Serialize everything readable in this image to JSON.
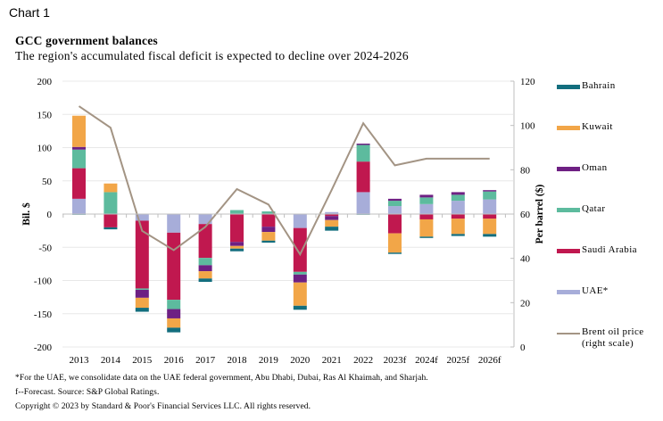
{
  "header": {
    "chart_number": "Chart 1"
  },
  "footnotes": [
    "*For the UAE, we consolidate data on the UAE federal government, Abu Dhabi, Dubai, Ras Al Khaimah, and Sharjah.",
    "f--Forecast. Source: S&P Global Ratings.",
    "Copyright © 2023 by Standard & Poor's Financial Services LLC. All rights reserved."
  ],
  "chart_data": {
    "type": "bar",
    "stacked": true,
    "title": "GCC government balances",
    "subtitle": "The region's accumulated fiscal deficit is expected to decline over 2024-2026",
    "xlabel": "",
    "ylabel": "Bil. $",
    "y2label": "Per barrel ($)",
    "ylim": [
      -200,
      200
    ],
    "y2lim": [
      0,
      120
    ],
    "yticks": [
      200,
      150,
      100,
      50,
      0,
      -50,
      -100,
      -150,
      -200
    ],
    "y2ticks": [
      120,
      100,
      80,
      60,
      40,
      20,
      0
    ],
    "grid": true,
    "legend_position": "right",
    "categories": [
      "2013",
      "2014",
      "2015",
      "2016",
      "2017",
      "2018",
      "2019",
      "2020",
      "2021",
      "2022",
      "2023f",
      "2024f",
      "2025f",
      "2026f"
    ],
    "series": [
      {
        "name": "Bahrain",
        "color": "#136E7E",
        "values": [
          -1,
          -3,
          -6,
          -7,
          -5,
          -4,
          -3,
          -6,
          -6,
          -1,
          -2,
          -2,
          -3,
          -4
        ]
      },
      {
        "name": "Kuwait",
        "color": "#F2A648",
        "values": [
          47,
          13,
          -15,
          -14,
          -11,
          -4,
          -13,
          -35,
          -10,
          0,
          -29,
          -26,
          -23,
          -23
        ]
      },
      {
        "name": "Oman",
        "color": "#6E2083",
        "values": [
          4,
          0,
          -12,
          -14,
          -9,
          -6,
          -8,
          -12,
          -6,
          2,
          3,
          4,
          4,
          2
        ]
      },
      {
        "name": "Qatar",
        "color": "#5DBB9E",
        "values": [
          28,
          33,
          -2,
          -14,
          -11,
          6,
          4,
          -4,
          0,
          25,
          8,
          10,
          9,
          12
        ]
      },
      {
        "name": "Saudi Arabia",
        "color": "#C0184F",
        "values": [
          46,
          -20,
          -102,
          -101,
          -51,
          -42,
          -19,
          -66,
          -3,
          46,
          -29,
          -8,
          -7,
          -7
        ]
      },
      {
        "name": "UAE*",
        "color": "#A7ADD9",
        "values": [
          23,
          0,
          -10,
          -28,
          -15,
          0,
          0,
          -21,
          3,
          33,
          12,
          15,
          20,
          22
        ]
      }
    ],
    "line_series": {
      "name": "Brent oil price (right scale)",
      "axis": "right",
      "color": "#A39484",
      "values": [
        108.7,
        99.0,
        52.4,
        43.7,
        54.2,
        71.3,
        64.3,
        41.8,
        70.9,
        101.0,
        82.0,
        85.0,
        85.0,
        85.0
      ]
    }
  }
}
